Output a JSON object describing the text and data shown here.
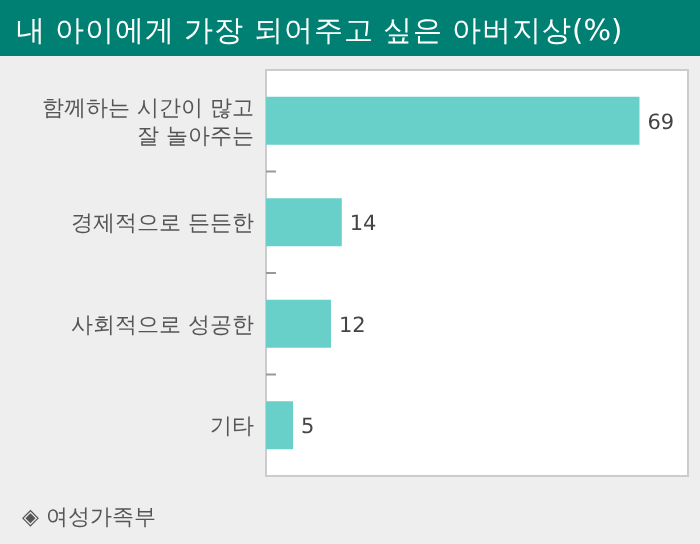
{
  "chart_data": {
    "type": "bar",
    "orientation": "horizontal",
    "title": "내 아이에게 가장 되어주고 싶은 아버지상(%)",
    "categories": [
      "함께하는 시간이 많고 잘 놀아주는",
      "경제적으로 든든한",
      "사회적으로 성공한",
      "기타"
    ],
    "values": [
      69,
      14,
      12,
      5
    ],
    "color": "#68cfc9",
    "data_labels": true,
    "annotations": [
      "◈ 여성가족부"
    ]
  }
}
